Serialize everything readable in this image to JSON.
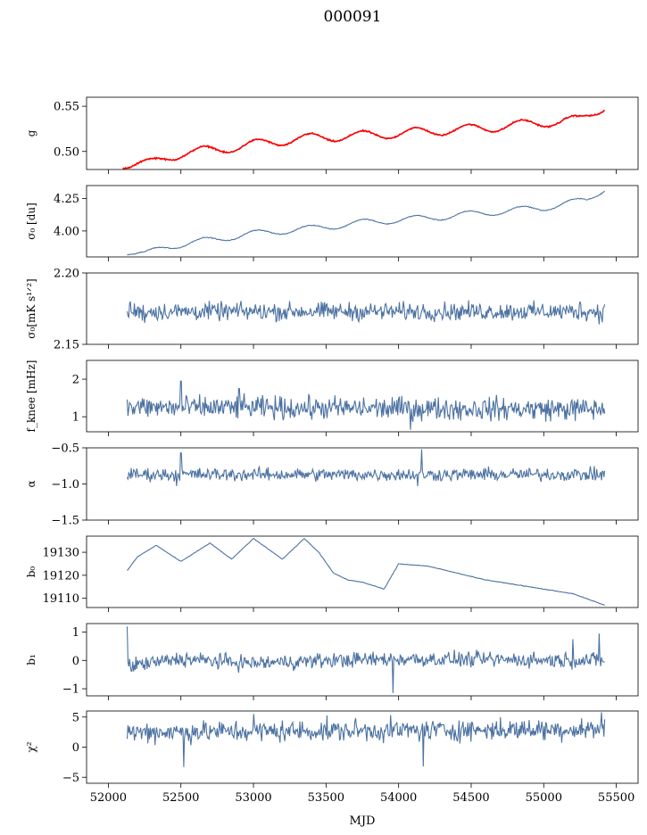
{
  "figure": {
    "title": "000091",
    "xlabel": "MJD"
  },
  "chart_data": [
    {
      "id": "g",
      "type": "line",
      "ylabel": "g",
      "xlim": [
        51850,
        55650
      ],
      "ylim": [
        0.48,
        0.56
      ],
      "yticks": [
        0.5,
        0.55
      ],
      "ytick_labels": [
        "0.50",
        "0.55"
      ],
      "series": [
        {
          "name": "",
          "color": "#4c72a2",
          "kind": "smooth",
          "trend": [
            [
              52100,
              0.486
            ],
            [
              52300,
              0.487
            ],
            [
              52500,
              0.498
            ],
            [
              52800,
              0.503
            ],
            [
              53100,
              0.51
            ],
            [
              53400,
              0.515
            ],
            [
              53800,
              0.518
            ],
            [
              54200,
              0.522
            ],
            [
              54600,
              0.526
            ],
            [
              55000,
              0.532
            ],
            [
              55250,
              0.535
            ],
            [
              55420,
              0.55
            ]
          ],
          "wave_amp": 0.005,
          "wave_period": 365,
          "noise": 0.0005
        },
        {
          "name": "",
          "color": "#ff0000",
          "kind": "smooth",
          "trend": [
            [
              52100,
              0.486
            ],
            [
              52300,
              0.487
            ],
            [
              52500,
              0.498
            ],
            [
              52800,
              0.503
            ],
            [
              53100,
              0.51
            ],
            [
              53400,
              0.515
            ],
            [
              53800,
              0.518
            ],
            [
              54200,
              0.522
            ],
            [
              54600,
              0.526
            ],
            [
              55000,
              0.532
            ],
            [
              55250,
              0.535
            ],
            [
              55420,
              0.55
            ]
          ],
          "wave_amp": 0.005,
          "wave_period": 365,
          "noise": 0.001
        }
      ]
    },
    {
      "id": "sigma0",
      "type": "line",
      "ylabel": "σ₀ [du]",
      "xlim": [
        51850,
        55650
      ],
      "ylim": [
        3.8,
        4.35
      ],
      "yticks": [
        4.0,
        4.25
      ],
      "ytick_labels": [
        "4.00",
        "4.25"
      ],
      "series": [
        {
          "name": "",
          "color": "#4c72a2",
          "kind": "smooth",
          "trend": [
            [
              52130,
              3.84
            ],
            [
              52250,
              3.82
            ],
            [
              52400,
              3.88
            ],
            [
              52700,
              3.93
            ],
            [
              53000,
              3.98
            ],
            [
              53400,
              4.02
            ],
            [
              53800,
              4.07
            ],
            [
              54200,
              4.1
            ],
            [
              54600,
              4.14
            ],
            [
              55000,
              4.18
            ],
            [
              55300,
              4.24
            ],
            [
              55420,
              4.33
            ]
          ],
          "wave_amp": 0.025,
          "wave_period": 365,
          "noise": 0.004
        }
      ]
    },
    {
      "id": "sigma_w",
      "type": "line",
      "ylabel": "σ₀[mK s¹ᐟ²]",
      "xlim": [
        51850,
        55650
      ],
      "ylim": [
        2.15,
        2.2
      ],
      "yticks": [
        2.15,
        2.2
      ],
      "ytick_labels": [
        "2.15",
        "2.20"
      ],
      "series": [
        {
          "name": "",
          "color": "#4c72a2",
          "kind": "noise",
          "trend": [
            [
              52130,
              2.173
            ],
            [
              55420,
              2.173
            ]
          ],
          "noise": 0.0035,
          "spikes": [
            [
              52150,
              2.18
            ],
            [
              52250,
              2.165
            ],
            [
              55250,
              2.18
            ],
            [
              55380,
              2.164
            ],
            [
              55420,
              2.178
            ]
          ]
        }
      ]
    },
    {
      "id": "fknee",
      "type": "line",
      "ylabel": "f_knee [mHz]",
      "xlim": [
        51850,
        55650
      ],
      "ylim": [
        0.6,
        2.5
      ],
      "yticks": [
        1,
        2
      ],
      "ytick_labels": [
        "1",
        "2"
      ],
      "series": [
        {
          "name": "",
          "color": "#4c72a2",
          "kind": "noise",
          "trend": [
            [
              52130,
              1.25
            ],
            [
              55420,
              1.2
            ]
          ],
          "noise": 0.17,
          "spikes": [
            [
              52500,
              1.95
            ],
            [
              54080,
              0.65
            ],
            [
              52900,
              1.75
            ]
          ]
        }
      ]
    },
    {
      "id": "alpha",
      "type": "line",
      "ylabel": "α",
      "xlim": [
        51850,
        55650
      ],
      "ylim": [
        -1.5,
        -0.5
      ],
      "yticks": [
        -1.5,
        -1.0,
        -0.5
      ],
      "ytick_labels": [
        "−1.5",
        "−1.0",
        "−0.5"
      ],
      "series": [
        {
          "name": "",
          "color": "#4c72a2",
          "kind": "noise",
          "trend": [
            [
              52130,
              -0.87
            ],
            [
              55420,
              -0.87
            ]
          ],
          "noise": 0.05,
          "spikes": [
            [
              52500,
              -0.57
            ],
            [
              54160,
              -0.52
            ],
            [
              54130,
              -1.03
            ],
            [
              52470,
              -1.03
            ]
          ]
        }
      ]
    },
    {
      "id": "b0",
      "type": "line",
      "ylabel": "b₀",
      "xlim": [
        51850,
        55650
      ],
      "ylim": [
        19106,
        19137
      ],
      "yticks": [
        19110,
        19120,
        19130
      ],
      "ytick_labels": [
        "19110",
        "19120",
        "19130"
      ],
      "series": [
        {
          "name": "",
          "color": "#4c72a2",
          "kind": "smooth",
          "trend": [
            [
              52130,
              19122
            ],
            [
              52200,
              19128
            ],
            [
              52330,
              19133
            ],
            [
              52500,
              19126
            ],
            [
              52700,
              19134
            ],
            [
              52850,
              19127
            ],
            [
              53000,
              19136
            ],
            [
              53200,
              19127
            ],
            [
              53350,
              19136
            ],
            [
              53450,
              19130
            ],
            [
              53550,
              19121
            ],
            [
              53650,
              19118
            ],
            [
              53750,
              19117
            ],
            [
              53900,
              19114
            ],
            [
              54000,
              19125
            ],
            [
              54200,
              19124
            ],
            [
              54600,
              19118
            ],
            [
              55000,
              19114
            ],
            [
              55200,
              19112
            ],
            [
              55420,
              19107
            ]
          ],
          "wave_amp": 0,
          "wave_period": 365,
          "noise": 0.15
        }
      ]
    },
    {
      "id": "b1",
      "type": "line",
      "ylabel": "b₁",
      "xlim": [
        51850,
        55650
      ],
      "ylim": [
        -1.25,
        1.3
      ],
      "yticks": [
        -1,
        0,
        1
      ],
      "ytick_labels": [
        "−1",
        "0",
        "1"
      ],
      "series": [
        {
          "name": "",
          "color": "#4c72a2",
          "kind": "noise",
          "trend": [
            [
              52130,
              -0.2
            ],
            [
              52500,
              0.05
            ],
            [
              53000,
              -0.1
            ],
            [
              53500,
              0.0
            ],
            [
              54000,
              0.05
            ],
            [
              55420,
              0.0
            ]
          ],
          "noise": 0.15,
          "spikes": [
            [
              52130,
              1.2
            ],
            [
              53960,
              -1.15
            ],
            [
              55200,
              0.75
            ],
            [
              55380,
              0.95
            ]
          ]
        }
      ]
    },
    {
      "id": "chi2",
      "type": "line",
      "ylabel": "χ²",
      "xlim": [
        51850,
        55650
      ],
      "ylim": [
        -6,
        6
      ],
      "yticks": [
        -5,
        0,
        5
      ],
      "ytick_labels": [
        "−5",
        "0",
        "5"
      ],
      "xticks": [
        52000,
        52500,
        53000,
        53500,
        54000,
        54500,
        55000,
        55500
      ],
      "xtick_labels": [
        "52000",
        "52500",
        "53000",
        "53500",
        "54000",
        "54500",
        "55000",
        "55500"
      ],
      "series": [
        {
          "name": "",
          "color": "#4c72a2",
          "kind": "noise",
          "trend": [
            [
              52130,
              2.5
            ],
            [
              55420,
              3.0
            ]
          ],
          "noise": 1.0,
          "spikes": [
            [
              52520,
              -3.3
            ],
            [
              54170,
              -3.2
            ],
            [
              53000,
              5.5
            ],
            [
              55400,
              5.8
            ]
          ]
        }
      ]
    }
  ]
}
